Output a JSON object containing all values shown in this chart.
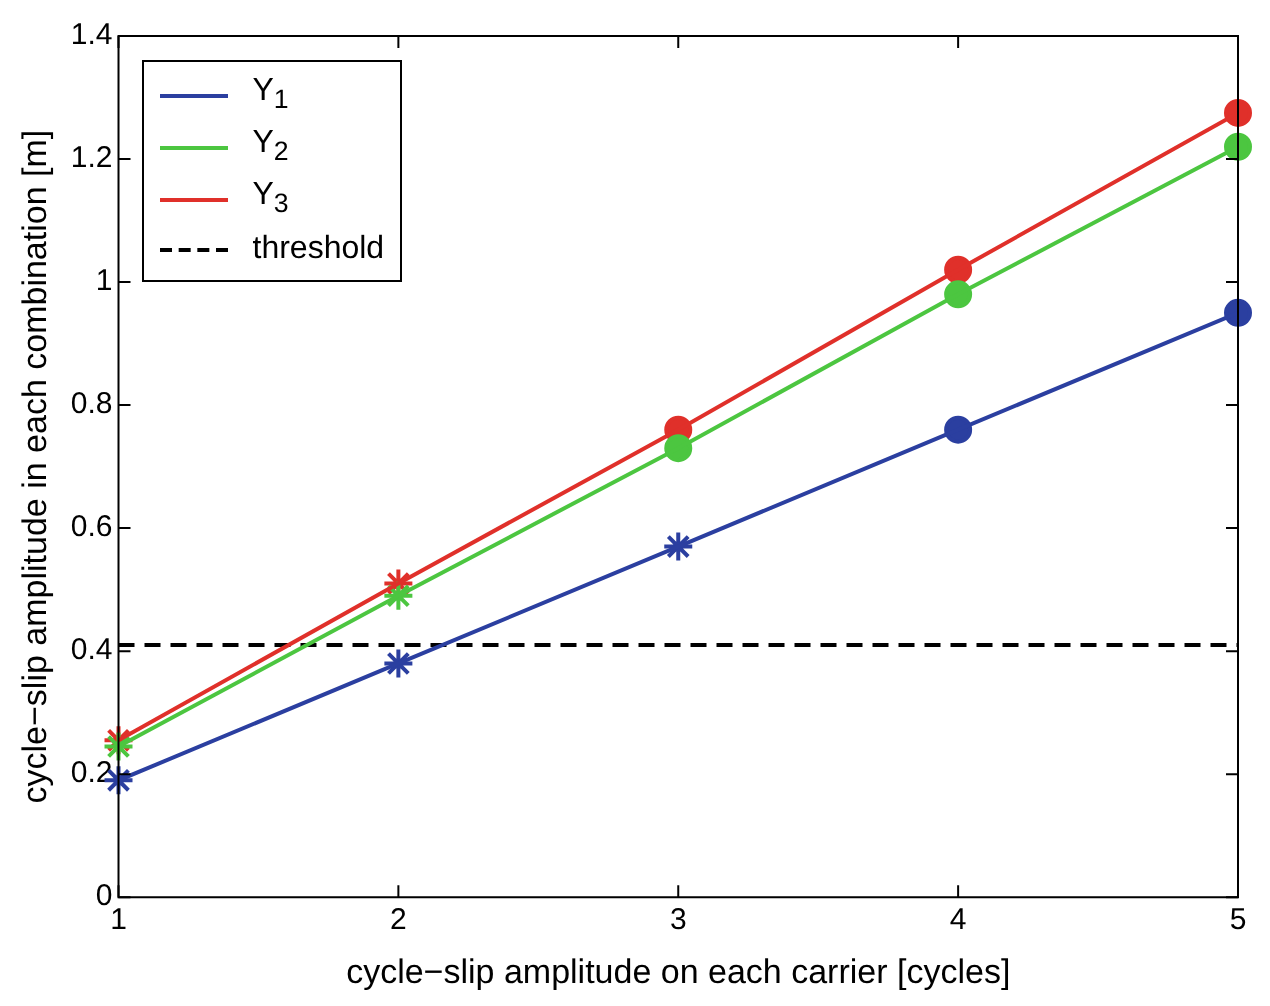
{
  "chart_data": {
    "type": "line",
    "xlabel": "cycle−slip amplitude on each carrier [cycles]",
    "ylabel": "cycle−slip amplitude in each combination [m]",
    "x": [
      1,
      2,
      3,
      4,
      5
    ],
    "series": [
      {
        "name": "Y$_{1}$",
        "color": "#2b3fa0",
        "marker": "none",
        "values": [
          0.19,
          0.38,
          0.57,
          0.76,
          0.95
        ]
      },
      {
        "name": "Y$_{2}$",
        "color": "#4cc640",
        "marker": "none",
        "values": [
          0.245,
          0.49,
          0.73,
          0.98,
          1.22
        ]
      },
      {
        "name": "Y$_{3}$",
        "color": "#e0302a",
        "marker": "none",
        "values": [
          0.255,
          0.51,
          0.76,
          1.02,
          1.275
        ]
      },
      {
        "type": "scatter",
        "color": "#2b3fa0",
        "marker": "cross",
        "x": [
          1,
          2,
          3
        ],
        "values": [
          0.19,
          0.38,
          0.57
        ]
      },
      {
        "type": "scatter",
        "color": "#2b3fa0",
        "marker": "circle",
        "x": [
          4,
          5
        ],
        "values": [
          0.76,
          0.95
        ]
      },
      {
        "type": "scatter",
        "color": "#4cc640",
        "marker": "cross",
        "x": [
          1,
          2
        ],
        "values": [
          0.245,
          0.49
        ]
      },
      {
        "type": "scatter",
        "color": "#4cc640",
        "marker": "circle",
        "x": [
          3,
          4,
          5
        ],
        "values": [
          0.73,
          0.98,
          1.22
        ]
      },
      {
        "type": "scatter",
        "color": "#e0302a",
        "marker": "cross",
        "x": [
          1,
          2
        ],
        "values": [
          0.255,
          0.51
        ]
      },
      {
        "type": "scatter",
        "color": "#e0302a",
        "marker": "circle",
        "x": [
          3,
          4,
          5
        ],
        "values": [
          0.76,
          1.02,
          1.275
        ]
      }
    ],
    "ref_lines": [
      {
        "axis": "y",
        "value": 0.41,
        "label": "threshold",
        "color": "#000000",
        "line_style": "dashed"
      }
    ],
    "xlim": [
      1,
      5
    ],
    "xticks": [
      1,
      2,
      3,
      4,
      5
    ],
    "ylim": [
      0,
      1.4
    ],
    "yticks": [
      0,
      0.2,
      0.4,
      0.6,
      0.8,
      1,
      1.2,
      1.4
    ],
    "grid": false,
    "legend": "top left"
  }
}
